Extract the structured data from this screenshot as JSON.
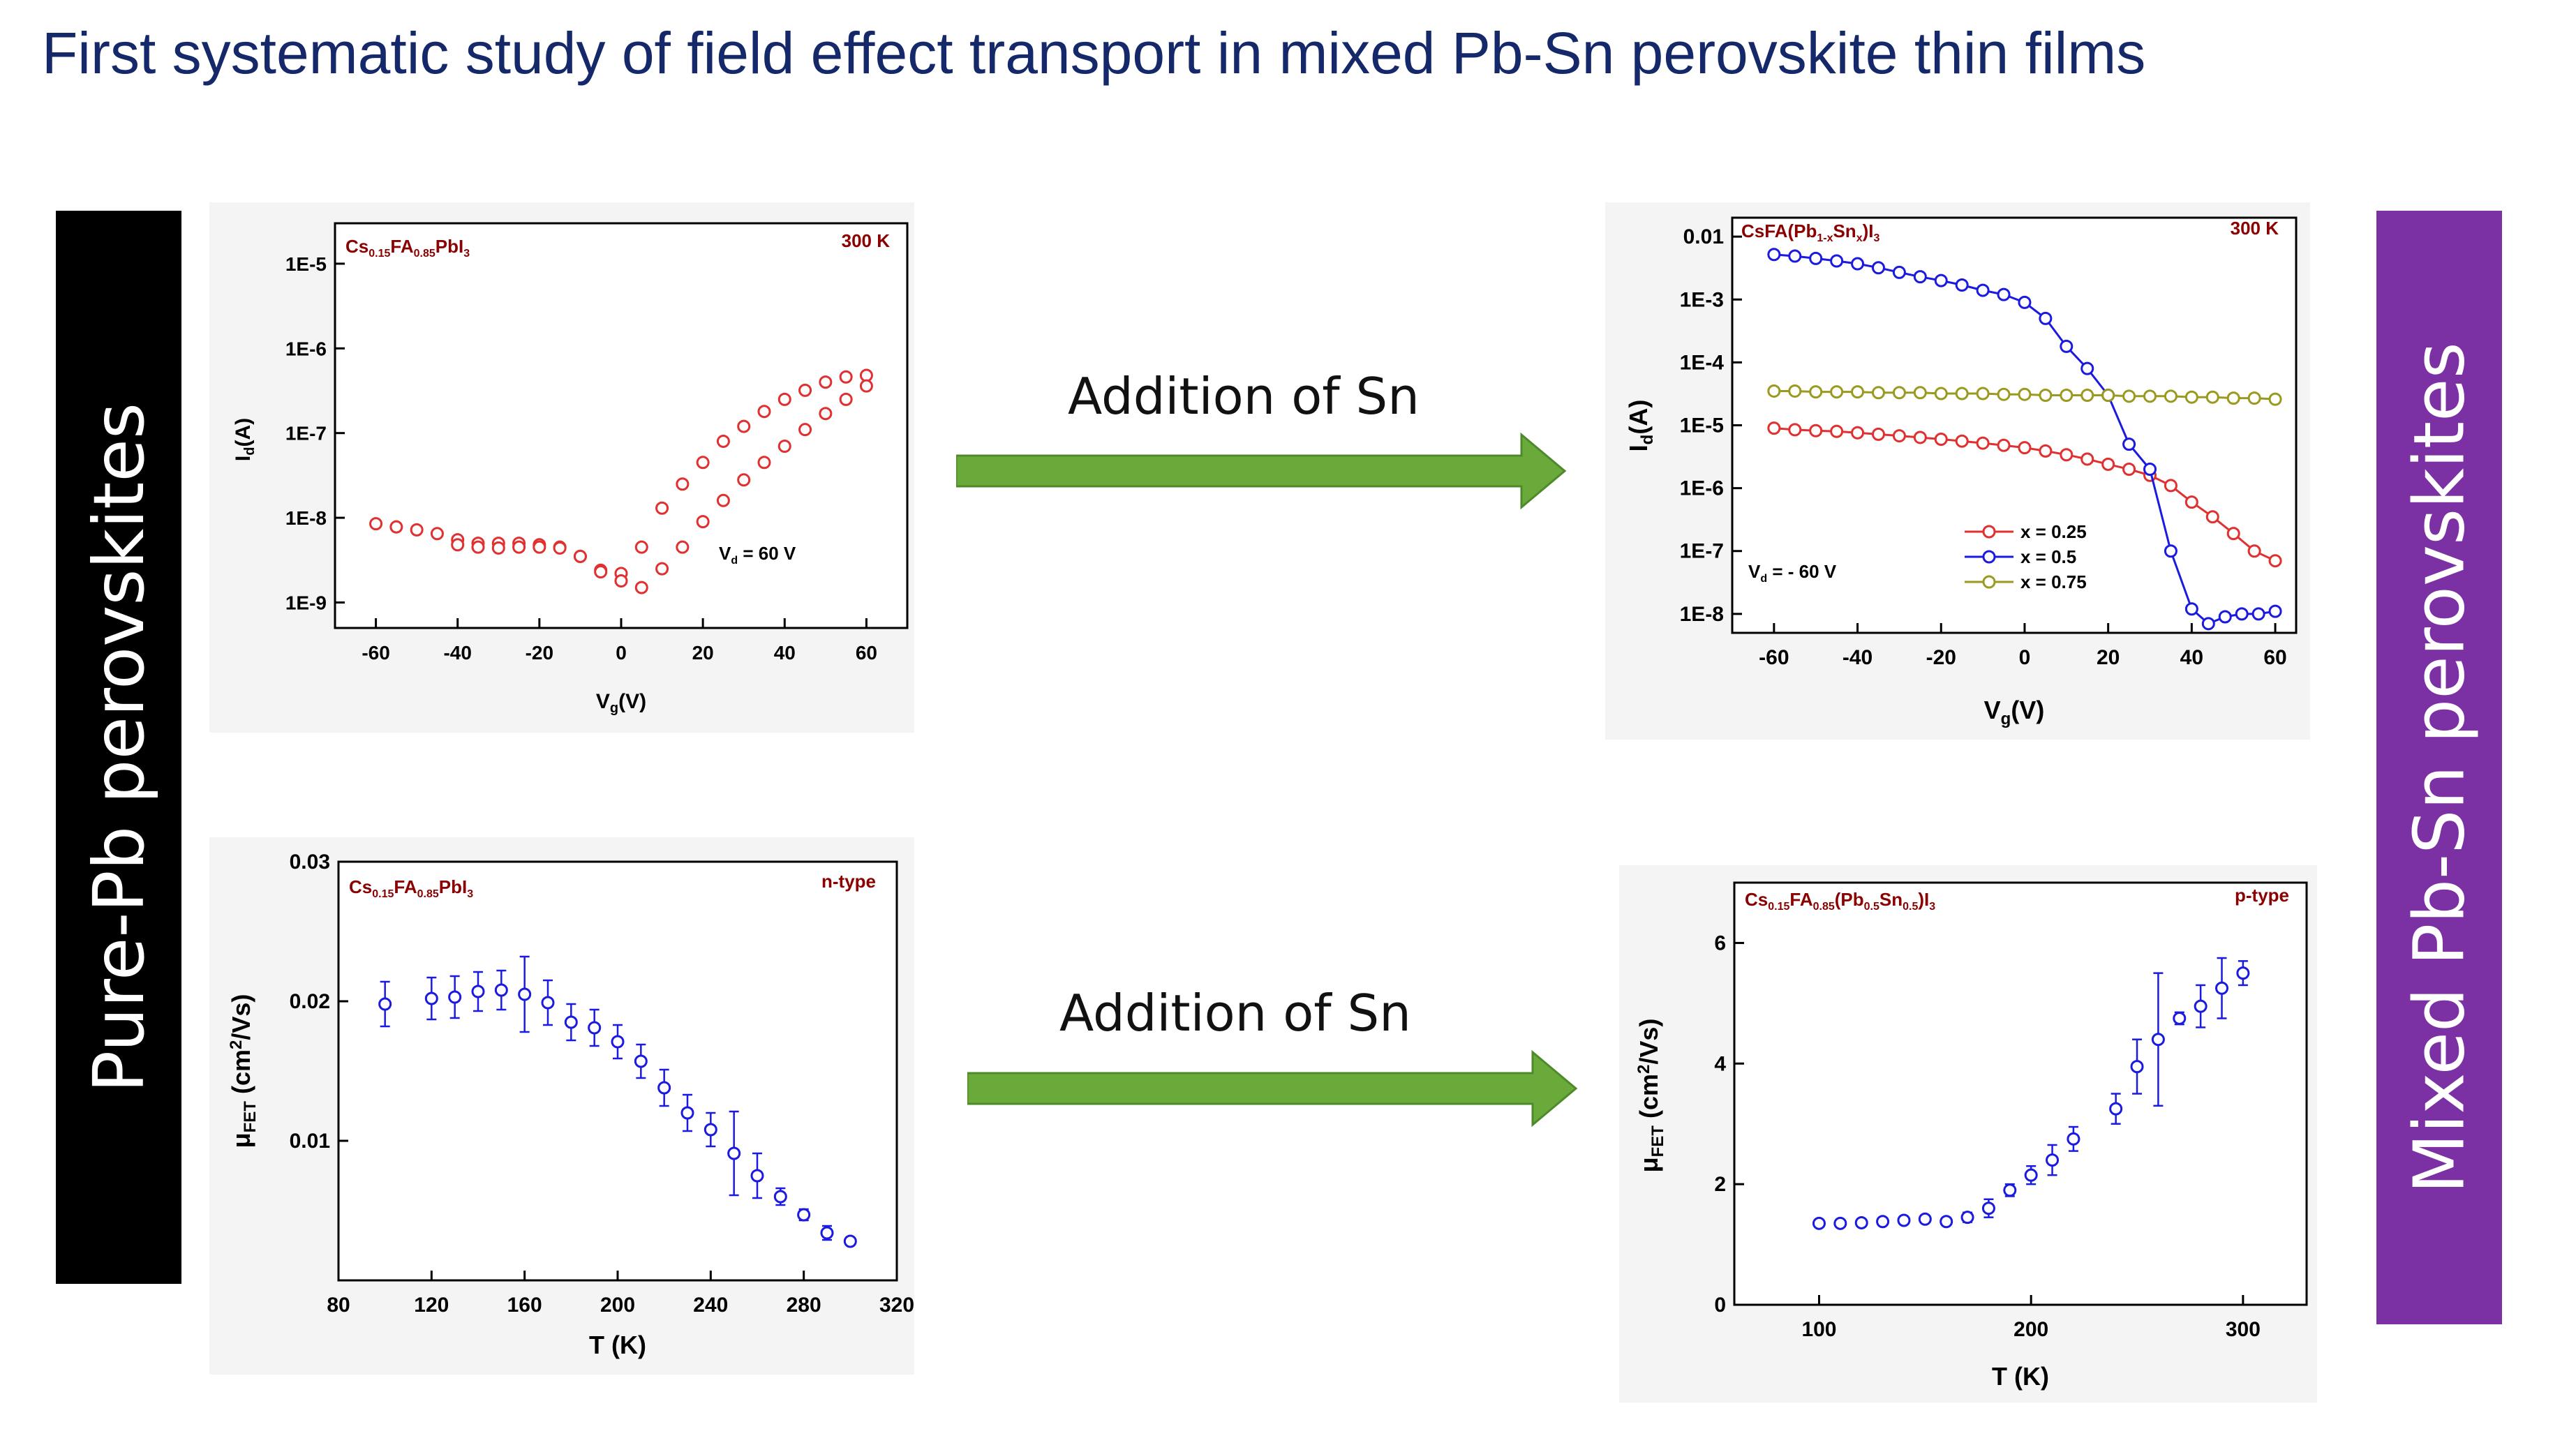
{
  "title": "First systematic study of field effect transport in mixed Pb-Sn perovskite thin films",
  "sidebars": {
    "left": {
      "label": "Pure-Pb perovskites",
      "color": "#000000"
    },
    "right": {
      "label": "Mixed Pb-Sn perovskites",
      "color": "#7b30a3"
    }
  },
  "arrows": {
    "top": {
      "label": "Addition of Sn",
      "color": "#6aaa3a"
    },
    "bottom": {
      "label": "Addition of Sn",
      "color": "#6aaa3a"
    }
  },
  "chart_data": [
    {
      "id": "c1",
      "type": "scatter",
      "yscale": "log",
      "compound": "Cs0.15FA0.85PbI3",
      "temperature": "300 K",
      "annotation": "Vd = 60 V",
      "xlabel": "Vg(V)",
      "ylabel": "Id(A)",
      "xlim": [
        -70,
        70
      ],
      "ylim": [
        5e-10,
        3e-05
      ],
      "xticks": [
        -60,
        -40,
        -20,
        0,
        20,
        40,
        60
      ],
      "yticks": [
        1e-09,
        1e-08,
        1e-07,
        1e-06,
        1e-05
      ],
      "yticklabels": [
        "1E-9",
        "1E-8",
        "1E-7",
        "1E-6",
        "1E-5"
      ],
      "series": [
        {
          "color": "#e03030",
          "marker": "open-circle",
          "x": [
            -60,
            -55,
            -50,
            -45,
            -40,
            -35,
            -30,
            -25,
            -20,
            -15,
            -10,
            -5,
            0,
            5,
            10,
            15,
            20,
            25,
            30,
            35,
            40,
            45,
            50,
            55,
            60
          ],
          "y": [
            8.5e-09,
            7.8e-09,
            7.2e-09,
            6.5e-09,
            5.5e-09,
            5e-09,
            5e-09,
            5e-09,
            4.8e-09,
            4.5e-09,
            3.5e-09,
            2.4e-09,
            2.2e-09,
            4.5e-09,
            1.3e-08,
            2.5e-08,
            4.5e-08,
            8e-08,
            1.2e-07,
            1.8e-07,
            2.5e-07,
            3.2e-07,
            4e-07,
            4.6e-07,
            4.8e-07
          ]
        },
        {
          "color": "#e03030",
          "marker": "open-circle",
          "x": [
            -40,
            -35,
            -30,
            -25,
            -20,
            -15,
            -10,
            -5,
            0,
            5,
            10,
            15,
            20,
            25,
            30,
            35,
            40,
            45,
            50,
            55,
            60
          ],
          "y": [
            4.8e-09,
            4.5e-09,
            4.4e-09,
            4.5e-09,
            4.5e-09,
            4.4e-09,
            3.5e-09,
            2.3e-09,
            1.8e-09,
            1.5e-09,
            2.5e-09,
            4.5e-09,
            9e-09,
            1.6e-08,
            2.8e-08,
            4.5e-08,
            7e-08,
            1.1e-07,
            1.7e-07,
            2.5e-07,
            3.6e-07
          ]
        }
      ]
    },
    {
      "id": "c2",
      "type": "scatter",
      "yscale": "log",
      "compound": "CsFA(Pb1-xSnx)I3",
      "temperature": "300 K",
      "annotation": "Vd = - 60 V",
      "xlabel": "Vg(V)",
      "ylabel": "Id(A)",
      "xlim": [
        -70,
        65
      ],
      "ylim": [
        5e-09,
        0.02
      ],
      "xticks": [
        -60,
        -40,
        -20,
        0,
        20,
        40,
        60
      ],
      "yticks": [
        1e-08,
        1e-07,
        1e-06,
        1e-05,
        0.0001,
        0.001,
        0.01
      ],
      "yticklabels": [
        "1E-8",
        "1E-7",
        "1E-6",
        "1E-5",
        "1E-4",
        "1E-3",
        "0.01"
      ],
      "legend_position": "lower-right",
      "series": [
        {
          "name": "x = 0.25",
          "color": "#e03030",
          "marker": "open-circle",
          "x": [
            -60,
            -55,
            -50,
            -45,
            -40,
            -35,
            -30,
            -25,
            -20,
            -15,
            -10,
            -5,
            0,
            5,
            10,
            15,
            20,
            25,
            30,
            35,
            40,
            45,
            50,
            55,
            60
          ],
          "y": [
            9e-06,
            8.5e-06,
            8.2e-06,
            8e-06,
            7.6e-06,
            7.2e-06,
            6.8e-06,
            6.4e-06,
            6e-06,
            5.6e-06,
            5.2e-06,
            4.8e-06,
            4.4e-06,
            3.9e-06,
            3.4e-06,
            2.9e-06,
            2.4e-06,
            2e-06,
            1.6e-06,
            1.1e-06,
            6e-07,
            3.5e-07,
            1.9e-07,
            1e-07,
            7e-08
          ]
        },
        {
          "name": "x = 0.5",
          "color": "#1a1ae0",
          "marker": "open-circle",
          "x": [
            -60,
            -55,
            -50,
            -45,
            -40,
            -35,
            -30,
            -25,
            -20,
            -15,
            -10,
            -5,
            0,
            5,
            10,
            15,
            20,
            25,
            30,
            35,
            40,
            44,
            48,
            52,
            56,
            60
          ],
          "y": [
            0.0052,
            0.0049,
            0.0045,
            0.0041,
            0.0037,
            0.0032,
            0.0027,
            0.0023,
            0.002,
            0.0017,
            0.0014,
            0.0012,
            0.0009,
            0.0005,
            0.00018,
            8e-05,
            3e-05,
            5e-06,
            2e-06,
            1e-07,
            1.2e-08,
            7e-09,
            9e-09,
            1e-08,
            1e-08,
            1.1e-08
          ]
        },
        {
          "name": "x = 0.75",
          "color": "#9a9a20",
          "marker": "open-circle",
          "x": [
            -60,
            -55,
            -50,
            -45,
            -40,
            -35,
            -30,
            -25,
            -20,
            -15,
            -10,
            -5,
            0,
            5,
            10,
            15,
            20,
            25,
            30,
            35,
            40,
            45,
            50,
            55,
            60
          ],
          "y": [
            3.5e-05,
            3.5e-05,
            3.4e-05,
            3.4e-05,
            3.4e-05,
            3.3e-05,
            3.3e-05,
            3.3e-05,
            3.2e-05,
            3.2e-05,
            3.2e-05,
            3.1e-05,
            3.1e-05,
            3e-05,
            3e-05,
            3e-05,
            3e-05,
            2.9e-05,
            2.9e-05,
            2.9e-05,
            2.8e-05,
            2.8e-05,
            2.7e-05,
            2.7e-05,
            2.6e-05
          ]
        }
      ]
    },
    {
      "id": "c3",
      "type": "scatter",
      "yscale": "linear",
      "compound": "Cs0.15FA0.85PbI3",
      "carrier": "n-type",
      "xlabel": "T (K)",
      "ylabel": "μFET (cm²/Vs)",
      "xlim": [
        80,
        320
      ],
      "ylim": [
        0.0,
        0.03
      ],
      "xticks": [
        80,
        120,
        160,
        200,
        240,
        280,
        320
      ],
      "yticks": [
        0.01,
        0.02,
        0.03
      ],
      "yticklabels": [
        "0.01",
        "0.02",
        "0.03"
      ],
      "series": [
        {
          "color": "#1a1ae0",
          "marker": "open-circle",
          "x": [
            100,
            120,
            130,
            140,
            150,
            160,
            170,
            180,
            190,
            200,
            210,
            220,
            230,
            240,
            250,
            260,
            270,
            280,
            290,
            300
          ],
          "y": [
            0.0198,
            0.0202,
            0.0203,
            0.0207,
            0.0208,
            0.0205,
            0.0199,
            0.0185,
            0.0181,
            0.0171,
            0.0157,
            0.0138,
            0.012,
            0.0108,
            0.0091,
            0.0075,
            0.006,
            0.0047,
            0.0034,
            0.0028
          ],
          "err": [
            0.0016,
            0.0015,
            0.0015,
            0.0014,
            0.0014,
            0.0027,
            0.0016,
            0.0013,
            0.0013,
            0.0012,
            0.0012,
            0.0013,
            0.0013,
            0.0012,
            0.003,
            0.0016,
            0.0006,
            0.0004,
            0.0005,
            0.0002
          ]
        }
      ]
    },
    {
      "id": "c4",
      "type": "scatter",
      "yscale": "linear",
      "compound": "Cs0.15FA0.85(Pb0.5Sn0.5)I3",
      "carrier": "p-type",
      "xlabel": "T (K)",
      "ylabel": "μFET (cm²/Vs)",
      "xlim": [
        60,
        330
      ],
      "ylim": [
        0,
        7
      ],
      "xticks": [
        100,
        200,
        300
      ],
      "yticks": [
        0,
        2,
        4,
        6
      ],
      "yticklabels": [
        "0",
        "2",
        "4",
        "6"
      ],
      "series": [
        {
          "color": "#1a1ae0",
          "marker": "open-circle",
          "x": [
            100,
            110,
            120,
            130,
            140,
            150,
            160,
            170,
            180,
            190,
            200,
            210,
            220,
            240,
            250,
            260,
            270,
            280,
            290,
            300
          ],
          "y": [
            1.35,
            1.35,
            1.36,
            1.38,
            1.4,
            1.42,
            1.38,
            1.45,
            1.6,
            1.9,
            2.15,
            2.4,
            2.75,
            3.25,
            3.95,
            4.4,
            4.75,
            4.95,
            5.25,
            5.5
          ],
          "err": [
            0.05,
            0.05,
            0.05,
            0.05,
            0.05,
            0.05,
            0.05,
            0.08,
            0.15,
            0.1,
            0.15,
            0.25,
            0.2,
            0.25,
            0.45,
            1.1,
            0.1,
            0.35,
            0.5,
            0.2
          ]
        }
      ]
    }
  ]
}
